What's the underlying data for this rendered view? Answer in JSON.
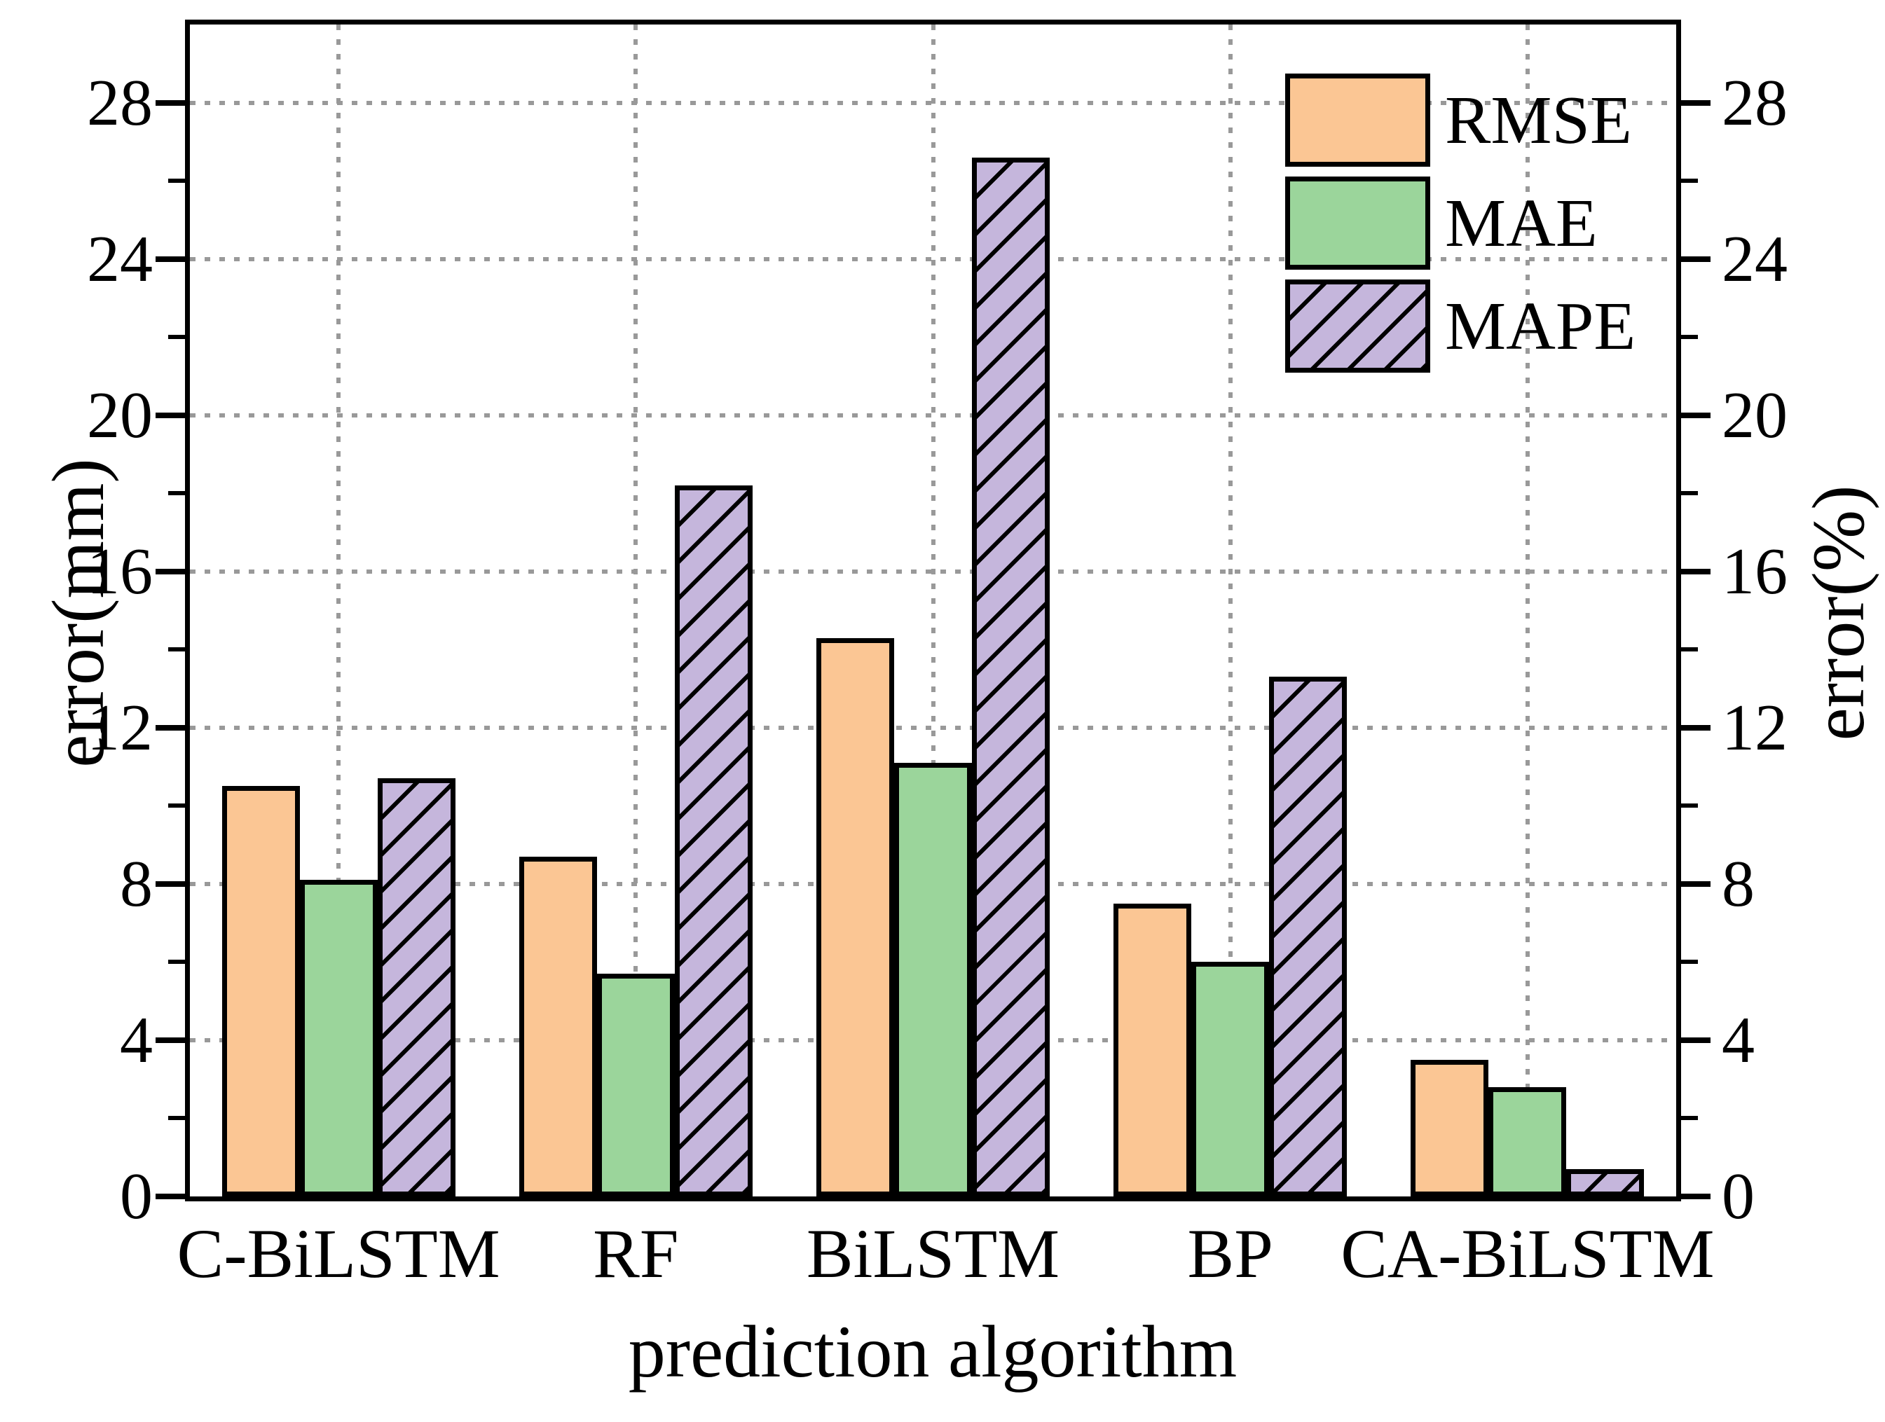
{
  "figure": {
    "background": "#ffffff",
    "title": ""
  },
  "axes": {
    "x_label": "prediction algorithm",
    "left_label": "error(mm)",
    "right_label": "error(%)",
    "y_major_ticks": [
      0,
      4,
      8,
      12,
      16,
      20,
      24,
      28
    ],
    "y_minor_ticks": [
      2,
      6,
      10,
      14,
      18,
      22,
      26
    ],
    "ylim": [
      0,
      30
    ],
    "grid": "dotted",
    "grid_color": "#999999"
  },
  "legend": {
    "position": "top-right-inside",
    "entries": [
      "RMSE",
      "MAE",
      "MAPE"
    ]
  },
  "chart_data": {
    "type": "bar",
    "title": "",
    "xlabel": "prediction algorithm",
    "ylabel_left": "error(mm)",
    "ylabel_right": "error(%)",
    "ylim": [
      0,
      30
    ],
    "categories": [
      "C-BiLSTM",
      "RF",
      "BiLSTM",
      "BP",
      "CA-BiLSTM"
    ],
    "series": [
      {
        "name": "RMSE",
        "axis": "left",
        "unit": "mm",
        "color": "#FBC694",
        "edge_color": "#000000",
        "hatch": "none",
        "values": [
          10.5,
          8.7,
          14.3,
          7.5,
          3.5
        ]
      },
      {
        "name": "MAE",
        "axis": "left",
        "unit": "mm",
        "color": "#9BD59B",
        "edge_color": "#000000",
        "hatch": "none",
        "values": [
          8.1,
          5.7,
          11.1,
          6.0,
          2.8
        ]
      },
      {
        "name": "MAPE",
        "axis": "right",
        "unit": "%",
        "color": "#C5B6DC",
        "edge_color": "#000000",
        "hatch": "/",
        "values": [
          10.7,
          18.2,
          26.6,
          13.3,
          0.7
        ]
      }
    ]
  }
}
